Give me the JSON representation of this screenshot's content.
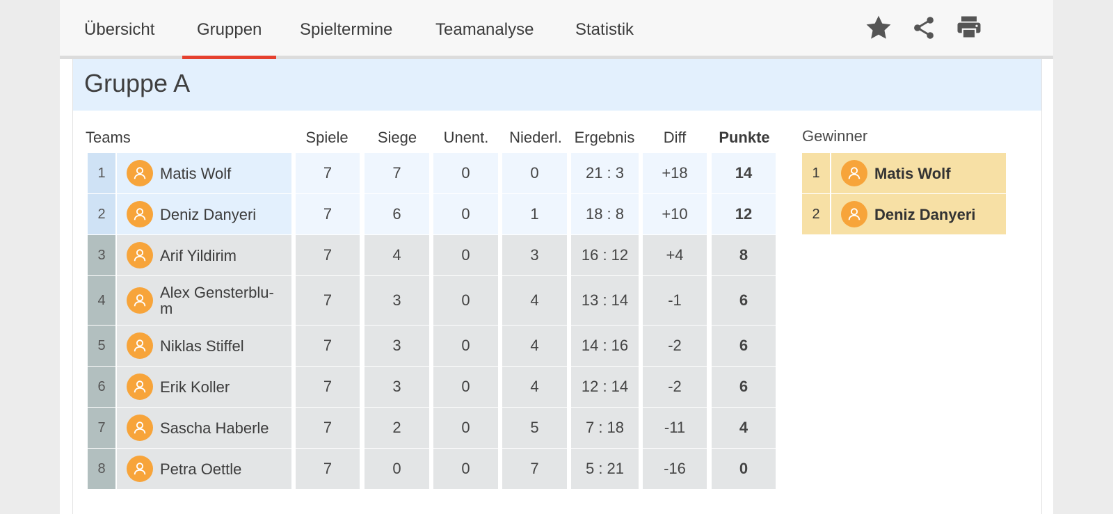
{
  "nav": {
    "tabs": [
      "Übersicht",
      "Gruppen",
      "Spieltermine",
      "Teamanalyse",
      "Statistik"
    ],
    "active_tab": "Gruppen",
    "icons": [
      "star-icon",
      "share-icon",
      "print-icon"
    ],
    "accent_color": "#e5412f"
  },
  "group": {
    "title": "Gruppe A"
  },
  "table": {
    "headers": {
      "teams": "Teams",
      "spiele": "Spiele",
      "siege": "Siege",
      "unent": "Unent.",
      "niederl": "Niederl.",
      "ergebnis": "Ergebnis",
      "diff": "Diff",
      "punkte": "Punkte"
    },
    "rows": [
      {
        "rank": "1",
        "name": "Matis Wolf",
        "spiele": "7",
        "siege": "7",
        "unent": "0",
        "niederl": "0",
        "ergebnis": "21 : 3",
        "diff": "+18",
        "punkte": "14",
        "qualified": true
      },
      {
        "rank": "2",
        "name": "Deniz Danyeri",
        "spiele": "7",
        "siege": "6",
        "unent": "0",
        "niederl": "1",
        "ergebnis": "18 : 8",
        "diff": "+10",
        "punkte": "12",
        "qualified": true
      },
      {
        "rank": "3",
        "name": "Arif Yildirim",
        "spiele": "7",
        "siege": "4",
        "unent": "0",
        "niederl": "3",
        "ergebnis": "16 : 12",
        "diff": "+4",
        "punkte": "8",
        "qualified": false
      },
      {
        "rank": "4",
        "name": "Alex Gensterblu-m",
        "spiele": "7",
        "siege": "3",
        "unent": "0",
        "niederl": "4",
        "ergebnis": "13 : 14",
        "diff": "-1",
        "punkte": "6",
        "qualified": false
      },
      {
        "rank": "5",
        "name": "Niklas Stiffel",
        "spiele": "7",
        "siege": "3",
        "unent": "0",
        "niederl": "4",
        "ergebnis": "14 : 16",
        "diff": "-2",
        "punkte": "6",
        "qualified": false
      },
      {
        "rank": "6",
        "name": "Erik Koller",
        "spiele": "7",
        "siege": "3",
        "unent": "0",
        "niederl": "4",
        "ergebnis": "12 : 14",
        "diff": "-2",
        "punkte": "6",
        "qualified": false
      },
      {
        "rank": "7",
        "name": "Sascha Haberle",
        "spiele": "7",
        "siege": "2",
        "unent": "0",
        "niederl": "5",
        "ergebnis": "7 : 18",
        "diff": "-11",
        "punkte": "4",
        "qualified": false
      },
      {
        "rank": "8",
        "name": "Petra Oettle",
        "spiele": "7",
        "siege": "0",
        "unent": "0",
        "niederl": "7",
        "ergebnis": "5 : 21",
        "diff": "-16",
        "punkte": "0",
        "qualified": false
      }
    ]
  },
  "winners": {
    "title": "Gewinner",
    "items": [
      {
        "rank": "1",
        "name": "Matis Wolf"
      },
      {
        "rank": "2",
        "name": "Deniz Danyeri"
      }
    ]
  },
  "colors": {
    "qualified_rank": "#cfe2f5",
    "qualified_cell": "#eff6fe",
    "qualified_name": "#e3f0fd",
    "other_rank": "#b2bfbf",
    "other_cell": "#e3e5e6",
    "avatar": "#f7a43a",
    "winner_bg": "#f7e0a5"
  }
}
